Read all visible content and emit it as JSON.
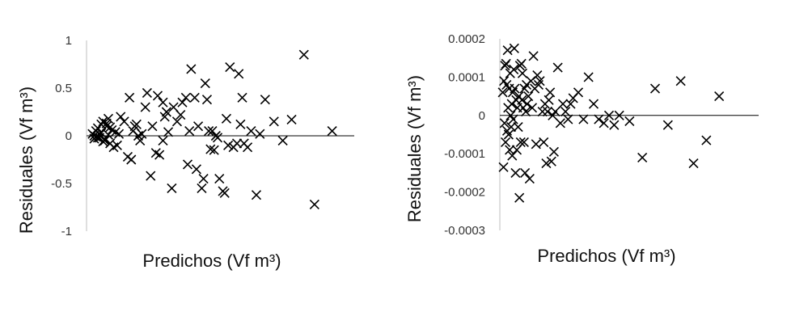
{
  "chart_data": [
    {
      "type": "scatter",
      "title": "",
      "xlabel": "Predichos (Vf m³)",
      "ylabel": "Residuales (Vf m³)",
      "ylim": [
        -1,
        1
      ],
      "yticks": [
        "1",
        "0.5",
        "0",
        "-0.5",
        "-1"
      ],
      "ytick_values": [
        1,
        0.5,
        0,
        -0.5,
        -1
      ],
      "grid": false,
      "zero_line": true,
      "marker": "x",
      "color": "#000000",
      "series": [
        {
          "x": [
            0.02,
            0.03,
            0.04,
            0.05,
            0.06,
            0.07,
            0.08,
            0.09,
            0.1,
            0.11,
            0.12,
            0.13,
            0.03,
            0.05,
            0.07,
            0.09,
            0.11,
            0.04,
            0.06,
            0.08,
            0.1,
            0.12,
            0.14,
            0.15,
            0.16,
            0.17,
            0.18,
            0.2,
            0.22,
            0.23,
            0.24,
            0.25,
            0.26,
            0.27,
            0.28,
            0.29,
            0.3,
            0.32,
            0.33,
            0.35,
            0.36,
            0.38,
            0.39,
            0.4,
            0.42,
            0.42,
            0.43,
            0.44,
            0.45,
            0.47,
            0.48,
            0.5,
            0.52,
            0.53,
            0.55,
            0.56,
            0.57,
            0.58,
            0.6,
            0.61,
            0.62,
            0.64,
            0.65,
            0.66,
            0.67,
            0.68,
            0.69,
            0.7,
            0.71,
            0.72,
            0.73,
            0.74,
            0.76,
            0.77,
            0.78,
            0.79,
            0.8,
            0.82,
            0.84,
            0.85,
            0.86,
            0.87,
            0.88,
            0.9,
            0.92,
            0.95,
            0.97,
            1.0,
            1.05,
            1.1,
            1.15,
            1.22,
            1.28,
            1.38
          ],
          "y": [
            0.02,
            -0.03,
            0.05,
            0.08,
            -0.02,
            0.12,
            0.15,
            -0.05,
            0.1,
            0.18,
            -0.08,
            0.06,
            0.0,
            -0.02,
            0.03,
            -0.04,
            0.01,
            -0.01,
            0.02,
            -0.06,
            0.13,
            0.09,
            -0.12,
            0.04,
            -0.1,
            0.02,
            0.2,
            0.15,
            -0.22,
            0.4,
            -0.25,
            0.05,
            0.1,
            0.12,
            0.0,
            -0.05,
            0.02,
            0.3,
            0.45,
            -0.42,
            0.1,
            -0.18,
            0.42,
            -0.2,
            0.35,
            -0.05,
            0.2,
            0.25,
            0.04,
            -0.55,
            0.3,
            0.15,
            0.22,
            0.35,
            0.4,
            -0.3,
            0.05,
            0.7,
            0.4,
            -0.35,
            0.1,
            -0.55,
            -0.45,
            0.55,
            0.38,
            0.05,
            -0.14,
            0.05,
            -0.15,
            0.0,
            -0.02,
            -0.45,
            -0.58,
            -0.6,
            0.18,
            -0.1,
            0.72,
            -0.12,
            -0.08,
            0.65,
            0.12,
            0.4,
            -0.08,
            -0.12,
            0.05,
            -0.62,
            0.02,
            0.38,
            0.15,
            -0.05,
            0.17,
            0.85,
            -0.72,
            0.05
          ]
        }
      ]
    },
    {
      "type": "scatter",
      "title": "",
      "xlabel": "Predichos (Vf m³)",
      "ylabel": "Residuales (Vf m³)",
      "ylim": [
        -0.0003,
        0.0002
      ],
      "yticks": [
        "0.0002",
        "0.0001",
        "0",
        "-0.0001",
        "-0.0002",
        "-0.0003"
      ],
      "ytick_values": [
        0.0002,
        0.0001,
        0,
        -0.0001,
        -0.0002,
        -0.0003
      ],
      "grid": false,
      "zero_line": true,
      "marker": "x",
      "color": "#000000",
      "series": [
        {
          "x": [
            0.005,
            0.008,
            0.01,
            0.012,
            0.014,
            0.016,
            0.018,
            0.02,
            0.022,
            0.024,
            0.026,
            0.028,
            0.03,
            0.032,
            0.034,
            0.036,
            0.038,
            0.04,
            0.042,
            0.044,
            0.046,
            0.048,
            0.05,
            0.052,
            0.055,
            0.058,
            0.06,
            0.062,
            0.065,
            0.068,
            0.07,
            0.072,
            0.075,
            0.078,
            0.08,
            0.082,
            0.085,
            0.088,
            0.09,
            0.092,
            0.095,
            0.098,
            0.1,
            0.105,
            0.11,
            0.115,
            0.12,
            0.125,
            0.13,
            0.135,
            0.14,
            0.145,
            0.15,
            0.16,
            0.165,
            0.17,
            0.175,
            0.18,
            0.185,
            0.19,
            0.195,
            0.2,
            0.205,
            0.21,
            0.22,
            0.23,
            0.24,
            0.25,
            0.26,
            0.27,
            0.28,
            0.3,
            0.32,
            0.34,
            0.36,
            0.38,
            0.4,
            0.42,
            0.44,
            0.46,
            0.5,
            0.55,
            0.6,
            0.65,
            0.7,
            0.75,
            0.8,
            0.85
          ],
          "y": [
            6e-05,
            -0.000135,
            9e-05,
            -2e-05,
            0.00013,
            -7e-05,
            0.000135,
            8e-05,
            -4e-05,
            0.00017,
            2e-05,
            -5e-05,
            7e-05,
            -9e-05,
            0.00011,
            0.0,
            -3e-05,
            3e-05,
            -0.000105,
            6e-05,
            -1e-05,
            0.00012,
            0.000175,
            7e-05,
            -0.00015,
            4e-05,
            -9e-05,
            2e-05,
            -3e-05,
            5e-05,
            -0.000215,
            0.00013,
            -7e-05,
            0.000135,
            4e-05,
            0.00011,
            2e-05,
            -7e-05,
            7e-05,
            -0.00015,
            1e-05,
            8e-05,
            3e-05,
            5e-05,
            -0.000165,
            9e-05,
            2e-05,
            0.000155,
            7e-05,
            -7.5e-05,
            0.000105,
            8e-05,
            9e-05,
            1e-05,
            -7e-05,
            3e-05,
            -0.000125,
            1e-05,
            4e-05,
            6e-05,
            -0.00012,
            0.0,
            -9.5e-05,
            1e-05,
            0.000125,
            -2e-05,
            3e-05,
            1e-05,
            -1e-05,
            3e-05,
            4.5e-05,
            6e-05,
            -1e-05,
            0.0001,
            3e-05,
            -1e-05,
            -2e-05,
            0.0,
            -2.5e-05,
            0.0,
            -1.5e-05,
            -0.00011,
            7e-05,
            -2.5e-05,
            9e-05,
            -0.000125,
            -6.5e-05,
            5e-05
          ],
          "x_pixel_hint": "none"
        }
      ]
    }
  ]
}
